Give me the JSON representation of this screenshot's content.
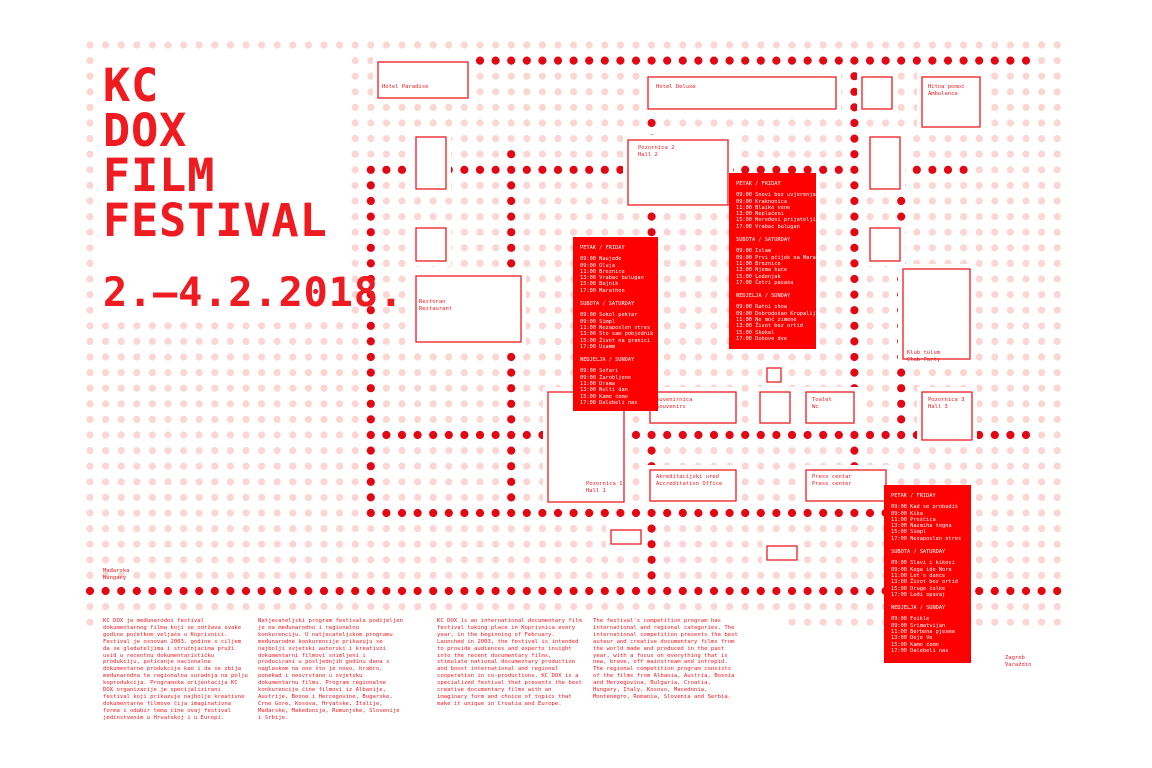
{
  "title_lines": [
    "KC",
    "DOX",
    "FILM",
    "FESTIVAL"
  ],
  "dates": "2.—4.2.2018.",
  "colors": {
    "red": "#ef1b21",
    "dot_light": "#fbd6d2",
    "dot_strong": "#e30613",
    "block": "#ff0000"
  },
  "venues": {
    "hotel_paradise": "Hotel Paradise",
    "hotel_deluxe": "Hotel Deluxe",
    "hitna": "Hitna pomoć\nAmbulance",
    "hall2": "Pozornica 2\nHall 2",
    "restoran": "Restoran\nRestaurant",
    "klub": "Klub tulum\nClub Party",
    "suvenirnica": "Suvenirnica\nSouvenirs",
    "toalet": "Toalet\nWc",
    "hall3": "Pozornica 3\nHall 3",
    "hall1": "Pozornica 1\nHall 1",
    "akreditacije": "Akreditacijski ured\nAccreditation Office",
    "press": "Press centar\nPress center",
    "madjarska": "Mađarska\nHungary",
    "zagreb": "Zagreb\nVaraždin"
  },
  "programs": [
    {
      "days": [
        {
          "heading": "PETAK / FRIDAY",
          "items": [
            "09:00 Naujeđe",
            "09:00 Oluja",
            "11:00 Breznice",
            "13:00 Vrabac bulugan",
            "15:00 Bajnik",
            "17:00 Marathon"
          ]
        },
        {
          "heading": "SUBOTA / SATURDAY",
          "items": [
            "09:00 Sokol pektar",
            "09:00 Simpl",
            "11:00 Nezaposlen stres",
            "13:00 Sto sam pobjednik",
            "15:00 Život na granici",
            "17:00 Usamm"
          ]
        },
        {
          "heading": "NEDJELJA / SUNDAY",
          "items": [
            "09:00 Sofari",
            "09:00 Zarobljene",
            "11:00 Drama",
            "13:00 Nulti dan",
            "15:00 Kamo ćemo",
            "17:00 Dalebeli nas"
          ]
        }
      ]
    },
    {
      "days": [
        {
          "heading": "PETAK / FRIDAY",
          "items": [
            "09:00 Snovi bez uvjerenja",
            "09:00 Kraknonica",
            "11:00 Blaike vene",
            "13:00 Neplaćeni",
            "15:00 Noređeni prijatelji",
            "17:00 Vrabac bulugan"
          ]
        },
        {
          "heading": "SUBOTA / SATURDAY",
          "items": [
            "09:00 Islam",
            "09:00 Prvi pčijek na Marau",
            "11:00 Breznice",
            "13:00 Njema kuće",
            "15:00 Ledenjak",
            "17:00 Četri pasaša"
          ]
        },
        {
          "heading": "NEDJELJA / SUNDAY",
          "items": [
            "09:00 Ratni show",
            "09:00 Dobrodošao Krupalija",
            "11:00 Ne moć zimene",
            "13:00 Život bez ortid",
            "15:00 Skokal",
            "17:00 Duhove dve"
          ]
        }
      ]
    },
    {
      "days": [
        {
          "heading": "PETAK / FRIDAY",
          "items": [
            "09:00 Kad se probudiš",
            "09:00 Kika",
            "11:00 Preščica",
            "13:00 Nasmiha tegna",
            "15:00 Simpl",
            "17:00 Nezaposlen stres"
          ]
        },
        {
          "heading": "SUBOTA / SATURDAY",
          "items": [
            "09:00 Slavi i kikovi",
            "09:00 Koga ide Nora",
            "11:00 Let's dance",
            "13:00 Život bez ortid",
            "15:00 Druge ćelke",
            "17:00 Ledi spavaj"
          ]
        },
        {
          "heading": "NEDJELJA / SUNDAY",
          "items": [
            "09:00 Foikle",
            "09:00 Srimatvijan",
            "11:00 Berbena pjesma",
            "13:00 Deje Ve",
            "15:00 Kamo ćemo",
            "17:00 Dalebeli nas"
          ]
        }
      ]
    }
  ],
  "texts": [
    "KC DOX je međunarodni festival dokumentarnog filma koji se održava svake godine početkom veljače u Koprivnici. Festival je osnovan 2003. godine s ciljem da se gledateljima i stručnjacima pruži uvid u recentnu dokumentarističku produkciju, poticanje nacionalne dokumentarne produkcije kao i da se zbija međunarodna te regionalna suradnja na polju koprodukcija. Programska orijentacija KC DOX organizacije je specijalizirani festival koji prikazuje najbolje kreativne dokumentarne filmove čija imaginativna forma i odabir tema čine ovaj festival jedinstvenim u Hrvatskoj i u Europi.",
    "Natjecateljski program festivala podijeljen je na međunarodnu i regionalnu konkurenciju. U natjecateljskom programu međunarodne konkurencije prikazuju se najbolji svjetski autorski i kreativni dokumentarni filmovi snimljeni i producirani u posljednjih godinu dana s naglaskom na ono što je novo, hrabro, ponekad i nesvrstano u svjetsku dokumentarnu filmu. Program regionalne konkurencije čine filmovi iz Albanije, Austrije, Bosne i Hercegovine, Bugarske, Crne Gore, Kosova, Hrvatske, Italije, Mađarske, Makedonije, Rumunjske, Slovenije i Srbije.",
    "KC DOX is an international documentary film festival taking place in Koprivnica every year, in the beginning of February. Launched in 2003, the festival is intended to provide audiences and experts insight into the recent documentary films, stimulate national documentary production and boost international and regional cooperation in co-productions. KC DOX is a specialized festival that presents the best creative documentary films with an imaginary form and choice of topics that make it unique in Croatia and Europe.",
    "The festival's competition program has international and regional categories. The international competition presents the best auteur and creative documentary films from the world made and produced in the past year, with a focus on everything that is new, brave, off mainstream and intrepid. The regional competition program consists of the films from Albania, Austria, Bosnia and Herzegovina, Bulgaria, Croatia, Hungary, Italy, Kosovo, Macedonia, Montenegro, Romania, Slovenia and Serbia."
  ]
}
